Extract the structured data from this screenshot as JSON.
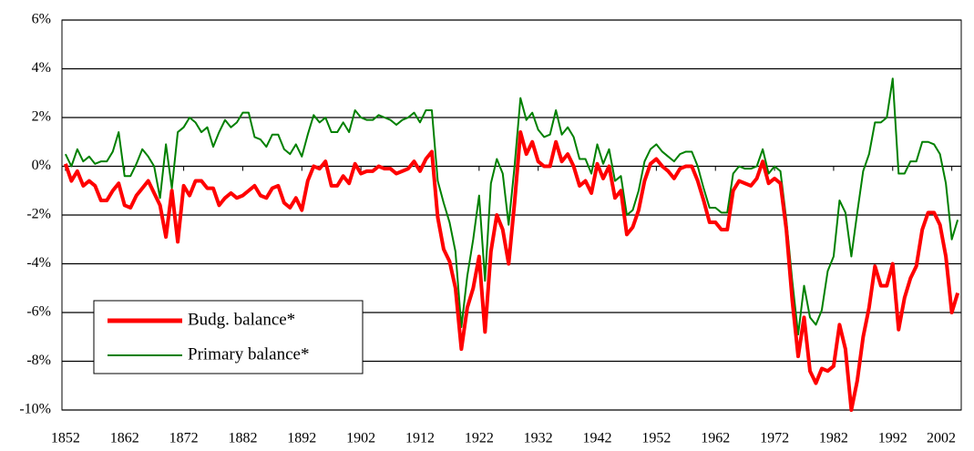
{
  "chart_data": {
    "type": "line",
    "x": [
      1852,
      1853,
      1854,
      1855,
      1856,
      1857,
      1858,
      1859,
      1860,
      1861,
      1862,
      1863,
      1864,
      1865,
      1866,
      1867,
      1868,
      1869,
      1870,
      1871,
      1872,
      1873,
      1874,
      1875,
      1876,
      1877,
      1878,
      1879,
      1880,
      1881,
      1882,
      1883,
      1884,
      1885,
      1886,
      1887,
      1888,
      1889,
      1890,
      1891,
      1892,
      1893,
      1894,
      1895,
      1896,
      1897,
      1898,
      1899,
      1900,
      1901,
      1902,
      1903,
      1904,
      1905,
      1906,
      1907,
      1908,
      1909,
      1910,
      1911,
      1912,
      1913,
      1914,
      1915,
      1916,
      1917,
      1918,
      1919,
      1920,
      1921,
      1922,
      1923,
      1924,
      1925,
      1926,
      1927,
      1928,
      1929,
      1930,
      1931,
      1932,
      1933,
      1934,
      1935,
      1936,
      1937,
      1938,
      1939,
      1940,
      1941,
      1942,
      1943,
      1944,
      1945,
      1946,
      1947,
      1948,
      1949,
      1950,
      1951,
      1952,
      1953,
      1954,
      1955,
      1956,
      1957,
      1958,
      1959,
      1960,
      1961,
      1962,
      1963,
      1964,
      1965,
      1966,
      1967,
      1968,
      1969,
      1970,
      1971,
      1972,
      1973,
      1974,
      1975,
      1976,
      1977,
      1978,
      1979,
      1980,
      1981,
      1982,
      1983,
      1984,
      1985,
      1986,
      1987,
      1988,
      1989,
      1990,
      1991,
      1992,
      1993,
      1994,
      1995,
      1996,
      1997,
      1998,
      1999,
      2000,
      2001,
      2002,
      2003
    ],
    "series": [
      {
        "name": "Budg. balance*",
        "color": "#ff0000",
        "values": [
          0.1,
          -0.6,
          -0.2,
          -0.8,
          -0.6,
          -0.8,
          -1.4,
          -1.4,
          -1.0,
          -0.7,
          -1.6,
          -1.7,
          -1.2,
          -0.9,
          -0.6,
          -1.1,
          -1.6,
          -2.9,
          -1.0,
          -3.1,
          -0.8,
          -1.2,
          -0.6,
          -0.6,
          -0.9,
          -0.9,
          -1.6,
          -1.3,
          -1.1,
          -1.3,
          -1.2,
          -1.0,
          -0.8,
          -1.2,
          -1.3,
          -0.9,
          -0.8,
          -1.5,
          -1.7,
          -1.3,
          -1.8,
          -0.6,
          0.0,
          -0.1,
          0.2,
          -0.8,
          -0.8,
          -0.4,
          -0.7,
          0.1,
          -0.3,
          -0.2,
          -0.2,
          0.0,
          -0.1,
          -0.1,
          -0.3,
          -0.2,
          -0.1,
          0.2,
          -0.2,
          0.3,
          0.6,
          -2.1,
          -3.4,
          -3.9,
          -5.0,
          -7.5,
          -5.8,
          -5.0,
          -3.7,
          -6.8,
          -3.5,
          -2.0,
          -2.6,
          -4.0,
          -1.5,
          1.4,
          0.5,
          1.0,
          0.2,
          0.0,
          0.0,
          1.0,
          0.2,
          0.5,
          0.0,
          -0.8,
          -0.6,
          -1.1,
          0.1,
          -0.5,
          0.0,
          -1.3,
          -1.0,
          -2.8,
          -2.5,
          -1.8,
          -0.6,
          0.1,
          0.3,
          0.0,
          -0.2,
          -0.5,
          -0.1,
          0.0,
          0.0,
          -0.6,
          -1.4,
          -2.3,
          -2.3,
          -2.6,
          -2.6,
          -1.0,
          -0.6,
          -0.7,
          -0.8,
          -0.5,
          0.2,
          -0.7,
          -0.5,
          -0.7,
          -2.6,
          -5.5,
          -7.8,
          -6.2,
          -8.4,
          -8.9,
          -8.3,
          -8.4,
          -8.2,
          -6.5,
          -7.5,
          -10.0,
          -8.8,
          -7.0,
          -5.8,
          -4.1,
          -4.9,
          -4.9,
          -4.0,
          -6.7,
          -5.4,
          -4.6,
          -4.1,
          -2.6,
          -1.9,
          -1.9,
          -2.4,
          -3.7,
          -6.0,
          -5.2
        ]
      },
      {
        "name": "Primary balance*",
        "color": "#008000",
        "values": [
          0.5,
          0.0,
          0.7,
          0.2,
          0.4,
          0.1,
          0.2,
          0.2,
          0.6,
          1.4,
          -0.4,
          -0.4,
          0.1,
          0.7,
          0.4,
          0.0,
          -1.3,
          0.9,
          -0.9,
          1.4,
          1.6,
          2.0,
          1.8,
          1.4,
          1.6,
          0.8,
          1.4,
          1.9,
          1.6,
          1.8,
          2.2,
          2.2,
          1.2,
          1.1,
          0.8,
          1.3,
          1.3,
          0.7,
          0.5,
          0.9,
          0.4,
          1.3,
          2.1,
          1.8,
          2.0,
          1.4,
          1.4,
          1.8,
          1.4,
          2.3,
          2.0,
          1.9,
          1.9,
          2.1,
          2.0,
          1.9,
          1.7,
          1.9,
          2.0,
          2.2,
          1.8,
          2.3,
          2.3,
          -0.6,
          -1.5,
          -2.3,
          -3.5,
          -6.6,
          -4.5,
          -3.0,
          -1.2,
          -4.7,
          -0.7,
          0.3,
          -0.3,
          -2.4,
          0.0,
          2.8,
          1.9,
          2.2,
          1.5,
          1.2,
          1.3,
          2.3,
          1.3,
          1.6,
          1.2,
          0.3,
          0.3,
          -0.3,
          0.9,
          0.1,
          0.7,
          -0.6,
          -0.4,
          -2.0,
          -1.8,
          -1.0,
          0.2,
          0.7,
          0.9,
          0.6,
          0.4,
          0.2,
          0.5,
          0.6,
          0.6,
          0.0,
          -0.9,
          -1.7,
          -1.7,
          -1.9,
          -1.9,
          -0.3,
          0.0,
          -0.1,
          -0.1,
          0.0,
          0.7,
          -0.3,
          0.0,
          -0.2,
          -2.2,
          -4.7,
          -6.9,
          -4.9,
          -6.2,
          -6.5,
          -5.9,
          -4.3,
          -3.7,
          -1.4,
          -1.9,
          -3.7,
          -1.9,
          -0.2,
          0.5,
          1.8,
          1.8,
          2.0,
          3.6,
          -0.3,
          -0.3,
          0.2,
          0.2,
          1.0,
          1.0,
          0.9,
          0.5,
          -0.7,
          -3.0,
          -2.2
        ]
      }
    ],
    "xlim": [
      1851.4,
      2003.6
    ],
    "xticks": [
      1852,
      1862,
      1872,
      1882,
      1892,
      1902,
      1912,
      1922,
      1932,
      1942,
      1952,
      1962,
      1972,
      1982,
      1992,
      2002
    ],
    "ylim": [
      -10,
      6
    ],
    "yticks": [
      {
        "value": -10,
        "label": "-10%"
      },
      {
        "value": -8,
        "label": "-8%"
      },
      {
        "value": -6,
        "label": "-6%"
      },
      {
        "value": -4,
        "label": "-4%"
      },
      {
        "value": -2,
        "label": "-2%"
      },
      {
        "value": 0,
        "label": "0%"
      },
      {
        "value": 2,
        "label": "2%"
      },
      {
        "value": 4,
        "label": "4%"
      },
      {
        "value": 6,
        "label": "6%"
      }
    ],
    "grid": true,
    "legend": "lower left"
  }
}
